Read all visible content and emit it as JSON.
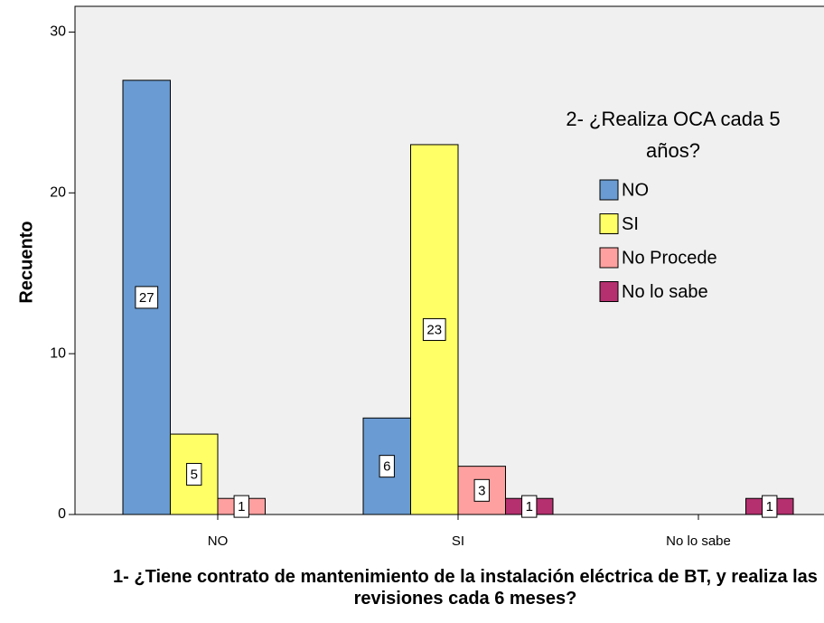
{
  "chart_data": {
    "type": "bar",
    "x_label": "1- ¿Tiene contrato de mantenimiento de la instalación eléctrica de BT, y realiza las revisiones cada 6 meses?",
    "y_label": "Recuento",
    "legend_title": "2- ¿Realiza OCA cada 5 años?",
    "categories": [
      "NO",
      "SI",
      "No lo sabe"
    ],
    "series": [
      {
        "name": "NO",
        "color": "#6a9bd2",
        "values": [
          27,
          6,
          null
        ]
      },
      {
        "name": "SI",
        "color": "#ffff66",
        "values": [
          5,
          23,
          null
        ]
      },
      {
        "name": "No Procede",
        "color": "#ffa0a0",
        "values": [
          1,
          3,
          null
        ]
      },
      {
        "name": "No lo sabe",
        "color": "#b5306f",
        "values": [
          null,
          1,
          1
        ]
      }
    ],
    "ylim": [
      0,
      31.6
    ],
    "yticks": [
      0,
      10,
      20,
      30
    ],
    "legend": "right"
  }
}
